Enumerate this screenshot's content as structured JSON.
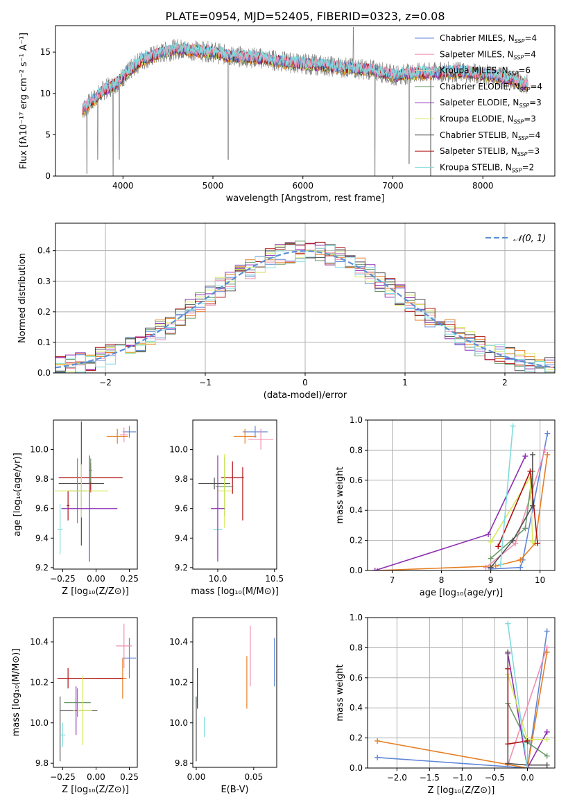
{
  "figure_title": "PLATE=0954, MJD=52405, FIBERID=0323, z=0.08",
  "colors": {
    "Chabrier MILES": "#5f86d8",
    "Salpeter MILES": "#f08fb0",
    "Kroupa MILES": "#e6c7a0",
    "Chabrier ELODIE": "#6b9a6b",
    "Salpeter ELODIE": "#8e2fb3",
    "Kroupa ELODIE": "#d6ea5c",
    "Chabrier STELIB": "#4f4f4f",
    "Salpeter STELIB": "#b01010",
    "Kroupa STELIB": "#7fdcdc",
    "orange": "#e67e22",
    "data": "#808080",
    "normal": "#5b8fd6"
  },
  "chart_data": [
    {
      "type": "line",
      "panel": "spectrum",
      "title": "PLATE=0954, MJD=52405, FIBERID=0323, z=0.08",
      "xlabel": "wavelength [Angstrom, rest frame]",
      "ylabel": "Flux [fλ10⁻¹⁷ erg cm⁻² s⁻¹ A⁻¹]",
      "xlim": [
        3250,
        8800
      ],
      "ylim": [
        0,
        18.2
      ],
      "xticks": [
        4000,
        5000,
        6000,
        7000,
        8000
      ],
      "yticks": [
        0,
        5,
        10,
        15
      ],
      "legend_position": "right",
      "legend": [
        {
          "label": "Chabrier MILES, N",
          "sub": "SSP",
          "suffix": "=4"
        },
        {
          "label": "Salpeter MILES, N",
          "sub": "SSP",
          "suffix": "=4"
        },
        {
          "label": "Kroupa MILES, N",
          "sub": "SSP",
          "suffix": "=6"
        },
        {
          "label": "Chabrier ELODIE, N",
          "sub": "SSP",
          "suffix": "=4"
        },
        {
          "label": "Salpeter ELODIE, N",
          "sub": "SSP",
          "suffix": "=3"
        },
        {
          "label": "Kroupa ELODIE, N",
          "sub": "SSP",
          "suffix": "=3"
        },
        {
          "label": "Chabrier STELIB, N",
          "sub": "SSP",
          "suffix": "=4"
        },
        {
          "label": "Salpeter STELIB, N",
          "sub": "SSP",
          "suffix": "=3"
        },
        {
          "label": "Kroupa STELIB, N",
          "sub": "SSP",
          "suffix": "=2"
        }
      ],
      "continuum": {
        "x": [
          3550,
          3700,
          3800,
          3900,
          4000,
          4200,
          4400,
          4600,
          4800,
          5000,
          5200,
          5500,
          5800,
          6000,
          6300,
          6600,
          6800,
          7000,
          7200,
          7400,
          7600,
          7800,
          8000,
          8200,
          8400,
          8500
        ],
        "y": [
          8.0,
          9.5,
          10.5,
          11.0,
          12.0,
          14.0,
          14.8,
          15.4,
          15.2,
          15.0,
          14.5,
          14.3,
          13.8,
          13.6,
          13.3,
          13.0,
          12.8,
          12.2,
          12.4,
          12.5,
          12.6,
          12.6,
          12.3,
          12.0,
          11.5,
          11.0
        ]
      },
      "data_spikes": [
        {
          "x": 3600,
          "y": 0.3
        },
        {
          "x": 3720,
          "y": 2.0
        },
        {
          "x": 3890,
          "y": 0.0
        },
        {
          "x": 3960,
          "y": 2.0
        },
        {
          "x": 5170,
          "y": 2.0
        },
        {
          "x": 6560,
          "y": 18.0
        },
        {
          "x": 6800,
          "y": 0.0
        },
        {
          "x": 7180,
          "y": 1.5
        },
        {
          "x": 7420,
          "y": 0.0
        }
      ]
    },
    {
      "type": "histogram",
      "panel": "residuals",
      "xlabel": "(data-model)/error",
      "ylabel": "Normed distribution",
      "xlim": [
        -2.5,
        2.5
      ],
      "ylim": [
        0,
        0.49
      ],
      "xticks": [
        -2,
        -1,
        0,
        1,
        2
      ],
      "yticks": [
        0.0,
        0.1,
        0.2,
        0.3,
        0.4
      ],
      "legend": [
        {
          "label": "𝒩(0, 1)"
        }
      ],
      "bins": 50,
      "normal_curve": {
        "mu": 0,
        "sigma": 1
      }
    },
    {
      "type": "errorbar",
      "panel": "age-vs-Z",
      "xlabel": "Z [log₁₀(Z/Z⊙)]",
      "ylabel": "age  [log₁₀(age/yr)]",
      "xlim": [
        -0.32,
        0.31
      ],
      "ylim": [
        9.19,
        10.2
      ],
      "xticks": [
        -0.25,
        0.0,
        0.25
      ],
      "yticks": [
        9.2,
        9.4,
        9.6,
        9.8,
        10.0
      ],
      "points": [
        {
          "series": "Chabrier MILES",
          "x": 0.25,
          "y": 10.12,
          "xerr": 0.05,
          "yerr": 0.04
        },
        {
          "series": "Salpeter MILES",
          "x": 0.21,
          "y": 10.1,
          "xerr": 0.03,
          "yerr": 0.05
        },
        {
          "series": "orange",
          "x": 0.16,
          "y": 10.09,
          "xerr": 0.08,
          "yerr": 0.05
        },
        {
          "series": "Kroupa STELIB",
          "x": -0.27,
          "y": 9.46,
          "xerr": 0.02,
          "yerr": 0.17
        },
        {
          "series": "Salpeter STELIB",
          "x": -0.04,
          "y": 9.81,
          "xerr": 0.24,
          "yerr": 0.1
        },
        {
          "series": "Salpeter STELIB",
          "x": -0.21,
          "y": 9.62,
          "xerr": 0.01,
          "yerr": 0.1
        },
        {
          "series": "Chabrier STELIB",
          "x": -0.11,
          "y": 9.77,
          "xerr": 0.17,
          "yerr": 0.42
        },
        {
          "series": "Chabrier ELODIE",
          "x": -0.14,
          "y": 9.72,
          "xerr": 0.07,
          "yerr": 0.22
        },
        {
          "series": "Kroupa ELODIE",
          "x": -0.11,
          "y": 9.72,
          "xerr": 0.2,
          "yerr": 0.18
        },
        {
          "series": "Salpeter ELODIE",
          "x": -0.05,
          "y": 9.6,
          "xerr": 0.21,
          "yerr": 0.36
        },
        {
          "series": "Chabrier ELODIE",
          "x": -0.04,
          "y": 9.86,
          "xerr": 0.01,
          "yerr": 0.08
        }
      ]
    },
    {
      "type": "errorbar",
      "panel": "age-vs-mass",
      "xlabel": "mass [log₁₀(M/M⊙)]",
      "xlim": [
        9.78,
        10.52
      ],
      "ylim": [
        9.19,
        10.2
      ],
      "xticks": [
        10.0,
        10.5
      ],
      "yticks": [
        9.2,
        9.4,
        9.6,
        9.8,
        10.0
      ],
      "points": [
        {
          "series": "Chabrier MILES",
          "x": 10.33,
          "y": 10.12,
          "xerr": 0.11,
          "yerr": 0.04
        },
        {
          "series": "Salpeter MILES",
          "x": 10.38,
          "y": 10.07,
          "xerr": 0.11,
          "yerr": 0.07
        },
        {
          "series": "orange",
          "x": 10.24,
          "y": 10.09,
          "xerr": 0.1,
          "yerr": 0.05
        },
        {
          "series": "Salpeter STELIB",
          "x": 10.13,
          "y": 9.81,
          "xerr": 0.1,
          "yerr": 0.11
        },
        {
          "series": "Salpeter STELIB",
          "x": 10.22,
          "y": 9.7,
          "xerr": 0.0,
          "yerr": 0.18
        },
        {
          "series": "Chabrier STELIB",
          "x": 9.97,
          "y": 9.77,
          "xerr": 0.14,
          "yerr": 0.04
        },
        {
          "series": "Chabrier ELODIE",
          "x": 10.06,
          "y": 9.75,
          "xerr": 0.08,
          "yerr": 0.2
        },
        {
          "series": "Kroupa ELODIE",
          "x": 10.06,
          "y": 9.72,
          "xerr": 0.06,
          "yerr": 0.25
        },
        {
          "series": "Kroupa STELIB",
          "x": 10.0,
          "y": 9.46,
          "xerr": 0.04,
          "yerr": 0.2
        },
        {
          "series": "Salpeter ELODIE",
          "x": 10.0,
          "y": 9.6,
          "xerr": 0.06,
          "yerr": 0.36
        }
      ]
    },
    {
      "type": "line",
      "panel": "mass-weight-vs-age",
      "xlabel": "age  [log₁₀(age/yr)]",
      "ylabel": "mass weight",
      "xlim": [
        6.5,
        10.3
      ],
      "ylim": [
        0,
        1.0
      ],
      "xticks": [
        7,
        8,
        9,
        10
      ],
      "yticks": [
        0.0,
        0.2,
        0.4,
        0.6,
        0.8,
        1.0
      ],
      "series": [
        {
          "name": "Chabrier MILES",
          "x": [
            9.0,
            9.6,
            9.65,
            10.15
          ],
          "y": [
            0.01,
            0.02,
            0.07,
            0.91
          ]
        },
        {
          "name": "Salpeter MILES",
          "x": [
            8.9,
            9.5,
            10.1
          ],
          "y": [
            0.02,
            0.18,
            0.8
          ]
        },
        {
          "name": "orange",
          "x": [
            6.7,
            9.1,
            9.6,
            9.9,
            10.15
          ],
          "y": [
            0.0,
            0.03,
            0.07,
            0.18,
            0.77
          ]
        },
        {
          "name": "Chabrier ELODIE",
          "x": [
            9.0,
            9.7,
            9.85
          ],
          "y": [
            0.08,
            0.28,
            0.66
          ]
        },
        {
          "name": "Salpeter ELODIE",
          "x": [
            6.65,
            8.95,
            9.7
          ],
          "y": [
            0.0,
            0.24,
            0.76
          ]
        },
        {
          "name": "Kroupa ELODIE",
          "x": [
            9.0,
            9.8,
            9.85
          ],
          "y": [
            0.19,
            0.62,
            0.19
          ]
        },
        {
          "name": "Chabrier STELIB",
          "x": [
            9.0,
            9.45,
            9.85,
            9.85
          ],
          "y": [
            0.02,
            0.2,
            0.43,
            0.77
          ]
        },
        {
          "name": "Salpeter STELIB",
          "x": [
            9.15,
            9.8,
            9.95
          ],
          "y": [
            0.16,
            0.66,
            0.18
          ]
        },
        {
          "name": "Kroupa STELIB",
          "x": [
            9.2,
            9.45
          ],
          "y": [
            0.04,
            0.96
          ]
        }
      ]
    },
    {
      "type": "errorbar",
      "panel": "mass-vs-Z",
      "xlabel": "Z [log₁₀(Z/Z⊙)]",
      "ylabel": "mass [log₁₀(M/M⊙)]",
      "xlim": [
        -0.32,
        0.31
      ],
      "ylim": [
        9.78,
        10.52
      ],
      "xticks": [
        -0.25,
        0.0,
        0.25
      ],
      "yticks": [
        9.8,
        10.0,
        10.2,
        10.4
      ],
      "points": [
        {
          "series": "Chabrier MILES",
          "x": 0.25,
          "y": 10.32,
          "xerr": 0.05,
          "yerr": 0.1
        },
        {
          "series": "Salpeter MILES",
          "x": 0.21,
          "y": 10.38,
          "xerr": 0.06,
          "yerr": 0.11
        },
        {
          "series": "orange",
          "x": 0.2,
          "y": 10.22,
          "xerr": 0.03,
          "yerr": 0.1
        },
        {
          "series": "Salpeter STELIB",
          "x": -0.05,
          "y": 10.22,
          "xerr": 0.24,
          "yerr": 0.0
        },
        {
          "series": "Salpeter STELIB",
          "x": -0.21,
          "y": 10.22,
          "xerr": 0.0,
          "yerr": 0.05
        },
        {
          "series": "Salpeter STELIB",
          "x": 0.1,
          "y": 10.22,
          "xerr": 0.1,
          "yerr": 0.0
        },
        {
          "series": "Chabrier STELIB",
          "x": -0.13,
          "y": 10.06,
          "xerr": 0.14,
          "yerr": 0.0
        },
        {
          "series": "Chabrier STELIB",
          "x": -0.27,
          "y": 9.97,
          "xerr": 0.0,
          "yerr": 0.16
        },
        {
          "series": "Chabrier ELODIE",
          "x": -0.14,
          "y": 10.1,
          "xerr": 0.1,
          "yerr": 0.07
        },
        {
          "series": "Kroupa ELODIE",
          "x": -0.1,
          "y": 10.06,
          "xerr": 0.07,
          "yerr": 0.17
        },
        {
          "series": "Kroupa STELIB",
          "x": -0.25,
          "y": 9.94,
          "xerr": 0.02,
          "yerr": 0.06
        },
        {
          "series": "Salpeter ELODIE",
          "x": -0.15,
          "y": 10.06,
          "xerr": 0.01,
          "yerr": 0.12
        }
      ]
    },
    {
      "type": "errorbar",
      "panel": "mass-vs-ebv",
      "xlabel": "E(B-V)",
      "xlim": [
        -0.003,
        0.07
      ],
      "ylim": [
        9.78,
        10.52
      ],
      "xticks": [
        0.0,
        0.05
      ],
      "yticks": [
        9.8,
        10.0,
        10.2,
        10.4
      ],
      "points": [
        {
          "series": "Chabrier MILES",
          "x": 0.068,
          "y": 10.3,
          "xerr": 0,
          "yerr": 0.12
        },
        {
          "series": "Salpeter MILES",
          "x": 0.047,
          "y": 10.33,
          "xerr": 0,
          "yerr": 0.15
        },
        {
          "series": "orange",
          "x": 0.044,
          "y": 10.2,
          "xerr": 0,
          "yerr": 0.13
        },
        {
          "series": "Salpeter STELIB",
          "x": 0.001,
          "y": 10.17,
          "xerr": 0,
          "yerr": 0.1
        },
        {
          "series": "Chabrier STELIB",
          "x": 0.0,
          "y": 9.97,
          "xerr": 0,
          "yerr": 0.16
        },
        {
          "series": "Kroupa STELIB",
          "x": 0.007,
          "y": 9.98,
          "xerr": 0,
          "yerr": 0.05
        }
      ]
    },
    {
      "type": "line",
      "panel": "mass-weight-vs-Z",
      "xlabel": "Z [log₁₀(Z/Z⊙)]",
      "ylabel": "mass weight",
      "xlim": [
        -2.45,
        0.42
      ],
      "ylim": [
        0,
        1.0
      ],
      "xticks": [
        -2.0,
        -1.5,
        -1.0,
        -0.5,
        0.0
      ],
      "yticks": [
        0.0,
        0.2,
        0.4,
        0.6,
        0.8,
        1.0
      ],
      "series": [
        {
          "name": "Chabrier MILES",
          "x": [
            -2.3,
            0.0,
            0.3
          ],
          "y": [
            0.07,
            0.0,
            0.91
          ]
        },
        {
          "name": "Salpeter MILES",
          "x": [
            -0.3,
            0.3
          ],
          "y": [
            0.02,
            0.8
          ]
        },
        {
          "name": "orange",
          "x": [
            -2.3,
            0.0,
            0.3
          ],
          "y": [
            0.18,
            0.0,
            0.77
          ]
        },
        {
          "name": "Chabrier ELODIE",
          "x": [
            -0.3,
            0.0,
            0.3
          ],
          "y": [
            0.43,
            0.17,
            0.08
          ]
        },
        {
          "name": "Salpeter ELODIE",
          "x": [
            -0.3,
            0.0,
            0.3
          ],
          "y": [
            0.76,
            0.0,
            0.24
          ]
        },
        {
          "name": "Kroupa ELODIE",
          "x": [
            -0.3,
            0.0,
            0.3
          ],
          "y": [
            0.62,
            0.19,
            0.19
          ]
        },
        {
          "name": "Chabrier STELIB",
          "x": [
            -0.3,
            -0.3,
            0.0,
            0.3
          ],
          "y": [
            0.77,
            0.03,
            0.02,
            0.02
          ]
        },
        {
          "name": "Salpeter STELIB",
          "x": [
            -0.3,
            -0.3,
            0.0
          ],
          "y": [
            0.66,
            0.16,
            0.18
          ]
        },
        {
          "name": "Kroupa STELIB",
          "x": [
            -0.3,
            0.0
          ],
          "y": [
            0.96,
            0.0
          ]
        }
      ]
    }
  ]
}
